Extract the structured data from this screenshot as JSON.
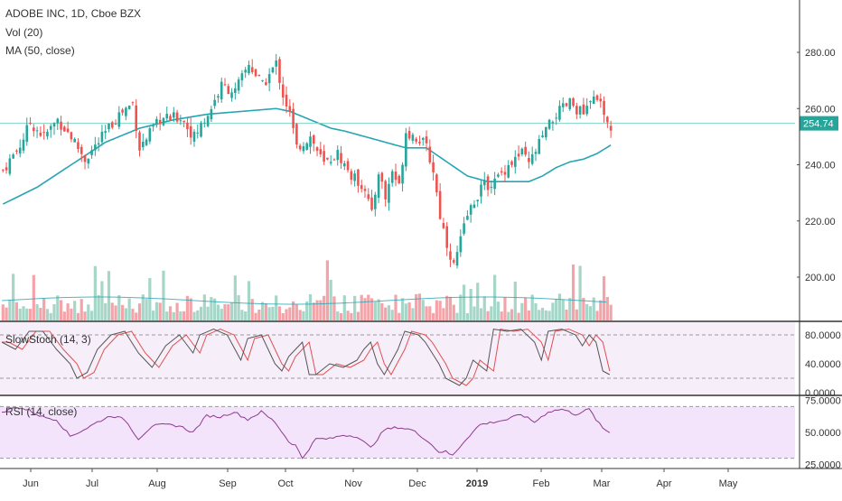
{
  "header": {
    "symbol_line": "ADOBE INC, 1D, Cboe BZX",
    "vol_label": "Vol (20)",
    "ma_label": "MA (50, close)"
  },
  "colors": {
    "up": "#26a69a",
    "down": "#ef5350",
    "vol_up": "#a5d6c8",
    "vol_down": "#f5a3a8",
    "ma": "#26a5b3",
    "stoch_k": "#555555",
    "stoch_d": "#e05050",
    "rsi": "#8e3a8e",
    "stoch_bg": "#f6eef9",
    "rsi_bg": "#f3e3fb",
    "price_line": "#7fd3c4"
  },
  "panes": {
    "stoch_label": "SlowStoch (14, 3)",
    "rsi_label": "RSI (14, close)"
  },
  "chart_data": [
    {
      "type": "candlestick",
      "title": "ADOBE INC, 1D, Cboe BZX",
      "y_ticks": [
        "280.00",
        "260.00",
        "240.00",
        "220.00",
        "200.00"
      ],
      "y_tick_values": [
        280,
        260,
        240,
        220,
        200
      ],
      "ylim": [
        184,
        294
      ],
      "last_price": "254.74",
      "last_price_value": 254.74,
      "x_labels": [
        "Jun",
        "Jul",
        "Aug",
        "Sep",
        "Oct",
        "Nov",
        "Dec",
        "2019",
        "Feb",
        "Mar",
        "Apr",
        "May"
      ],
      "x_label_bold": [
        false,
        false,
        false,
        false,
        false,
        false,
        false,
        true,
        false,
        false,
        false,
        false
      ],
      "anchor_points": [
        [
          0,
          238
        ],
        [
          5,
          247
        ],
        [
          8,
          255
        ],
        [
          12,
          250
        ],
        [
          16,
          256
        ],
        [
          20,
          250
        ],
        [
          24,
          242
        ],
        [
          28,
          248
        ],
        [
          34,
          258
        ],
        [
          38,
          262
        ],
        [
          40,
          246
        ],
        [
          46,
          256
        ],
        [
          52,
          257
        ],
        [
          56,
          250
        ],
        [
          60,
          258
        ],
        [
          64,
          268
        ],
        [
          68,
          266
        ],
        [
          72,
          276
        ],
        [
          76,
          268
        ],
        [
          80,
          276
        ],
        [
          82,
          265
        ],
        [
          84,
          258
        ],
        [
          86,
          246
        ],
        [
          90,
          250
        ],
        [
          94,
          240
        ],
        [
          98,
          244
        ],
        [
          102,
          236
        ],
        [
          106,
          232
        ],
        [
          108,
          222
        ],
        [
          110,
          238
        ],
        [
          112,
          228
        ],
        [
          114,
          238
        ],
        [
          116,
          232
        ],
        [
          118,
          252
        ],
        [
          122,
          249
        ],
        [
          124,
          246
        ],
        [
          126,
          238
        ],
        [
          128,
          222
        ],
        [
          130,
          212
        ],
        [
          132,
          204
        ],
        [
          136,
          222
        ],
        [
          140,
          232
        ],
        [
          144,
          234
        ],
        [
          148,
          240
        ],
        [
          152,
          244
        ],
        [
          154,
          240
        ],
        [
          158,
          250
        ],
        [
          162,
          258
        ],
        [
          166,
          262
        ],
        [
          170,
          258
        ],
        [
          174,
          265
        ],
        [
          176,
          256
        ],
        [
          178,
          253
        ]
      ],
      "ma50_points": [
        [
          0,
          226
        ],
        [
          10,
          232
        ],
        [
          20,
          240
        ],
        [
          30,
          248
        ],
        [
          40,
          253
        ],
        [
          50,
          256
        ],
        [
          60,
          258
        ],
        [
          70,
          259
        ],
        [
          80,
          260
        ],
        [
          84,
          259
        ],
        [
          90,
          256
        ],
        [
          96,
          253
        ],
        [
          100,
          252
        ],
        [
          106,
          250
        ],
        [
          112,
          248
        ],
        [
          118,
          246
        ],
        [
          124,
          246
        ],
        [
          130,
          241
        ],
        [
          136,
          236
        ],
        [
          142,
          234
        ],
        [
          148,
          234
        ],
        [
          154,
          234
        ],
        [
          158,
          236
        ],
        [
          162,
          239
        ],
        [
          166,
          241
        ],
        [
          170,
          242
        ],
        [
          174,
          244
        ],
        [
          178,
          247
        ]
      ],
      "n_bars": 179
    },
    {
      "type": "line",
      "title": "SlowStoch (14, 3)",
      "y_ticks": [
        "80.0000",
        "40.0000",
        "0.0000"
      ],
      "y_tick_values": [
        80,
        40,
        0
      ],
      "ylim": [
        0,
        95
      ],
      "k_points": [
        [
          0,
          70
        ],
        [
          4,
          60
        ],
        [
          8,
          85
        ],
        [
          12,
          85
        ],
        [
          16,
          60
        ],
        [
          20,
          40
        ],
        [
          22,
          20
        ],
        [
          25,
          28
        ],
        [
          28,
          60
        ],
        [
          32,
          80
        ],
        [
          36,
          85
        ],
        [
          40,
          55
        ],
        [
          44,
          35
        ],
        [
          48,
          65
        ],
        [
          52,
          80
        ],
        [
          56,
          55
        ],
        [
          58,
          80
        ],
        [
          62,
          88
        ],
        [
          66,
          80
        ],
        [
          70,
          45
        ],
        [
          72,
          75
        ],
        [
          76,
          80
        ],
        [
          80,
          40
        ],
        [
          82,
          30
        ],
        [
          84,
          50
        ],
        [
          88,
          70
        ],
        [
          90,
          25
        ],
        [
          92,
          25
        ],
        [
          96,
          40
        ],
        [
          100,
          35
        ],
        [
          104,
          45
        ],
        [
          106,
          60
        ],
        [
          108,
          70
        ],
        [
          110,
          40
        ],
        [
          112,
          25
        ],
        [
          116,
          60
        ],
        [
          118,
          85
        ],
        [
          122,
          80
        ],
        [
          124,
          70
        ],
        [
          128,
          40
        ],
        [
          130,
          20
        ],
        [
          134,
          10
        ],
        [
          136,
          20
        ],
        [
          138,
          45
        ],
        [
          142,
          30
        ],
        [
          144,
          88
        ],
        [
          148,
          85
        ],
        [
          152,
          88
        ],
        [
          156,
          70
        ],
        [
          158,
          45
        ],
        [
          160,
          85
        ],
        [
          164,
          88
        ],
        [
          168,
          80
        ],
        [
          170,
          65
        ],
        [
          172,
          80
        ],
        [
          174,
          70
        ],
        [
          176,
          30
        ],
        [
          178,
          25
        ]
      ],
      "d_offset": 2
    },
    {
      "type": "line",
      "title": "RSI (14, close)",
      "y_ticks": [
        "75.0000",
        "50.0000",
        "25.0000"
      ],
      "y_tick_values": [
        75,
        50,
        25
      ],
      "ylim": [
        22,
        78
      ],
      "points": [
        [
          0,
          65
        ],
        [
          4,
          70
        ],
        [
          8,
          67
        ],
        [
          12,
          62
        ],
        [
          16,
          60
        ],
        [
          20,
          47
        ],
        [
          24,
          52
        ],
        [
          28,
          58
        ],
        [
          32,
          63
        ],
        [
          36,
          60
        ],
        [
          40,
          45
        ],
        [
          44,
          55
        ],
        [
          48,
          56
        ],
        [
          52,
          55
        ],
        [
          56,
          50
        ],
        [
          60,
          63
        ],
        [
          64,
          62
        ],
        [
          68,
          66
        ],
        [
          72,
          60
        ],
        [
          76,
          66
        ],
        [
          80,
          58
        ],
        [
          84,
          43
        ],
        [
          86,
          40
        ],
        [
          88,
          30
        ],
        [
          92,
          45
        ],
        [
          96,
          45
        ],
        [
          100,
          48
        ],
        [
          104,
          47
        ],
        [
          108,
          38
        ],
        [
          112,
          52
        ],
        [
          116,
          54
        ],
        [
          120,
          52
        ],
        [
          124,
          45
        ],
        [
          128,
          35
        ],
        [
          130,
          35
        ],
        [
          132,
          32
        ],
        [
          136,
          45
        ],
        [
          140,
          56
        ],
        [
          144,
          58
        ],
        [
          148,
          60
        ],
        [
          152,
          64
        ],
        [
          156,
          58
        ],
        [
          160,
          66
        ],
        [
          164,
          68
        ],
        [
          168,
          64
        ],
        [
          172,
          68
        ],
        [
          174,
          60
        ],
        [
          176,
          53
        ],
        [
          178,
          50
        ]
      ]
    }
  ]
}
